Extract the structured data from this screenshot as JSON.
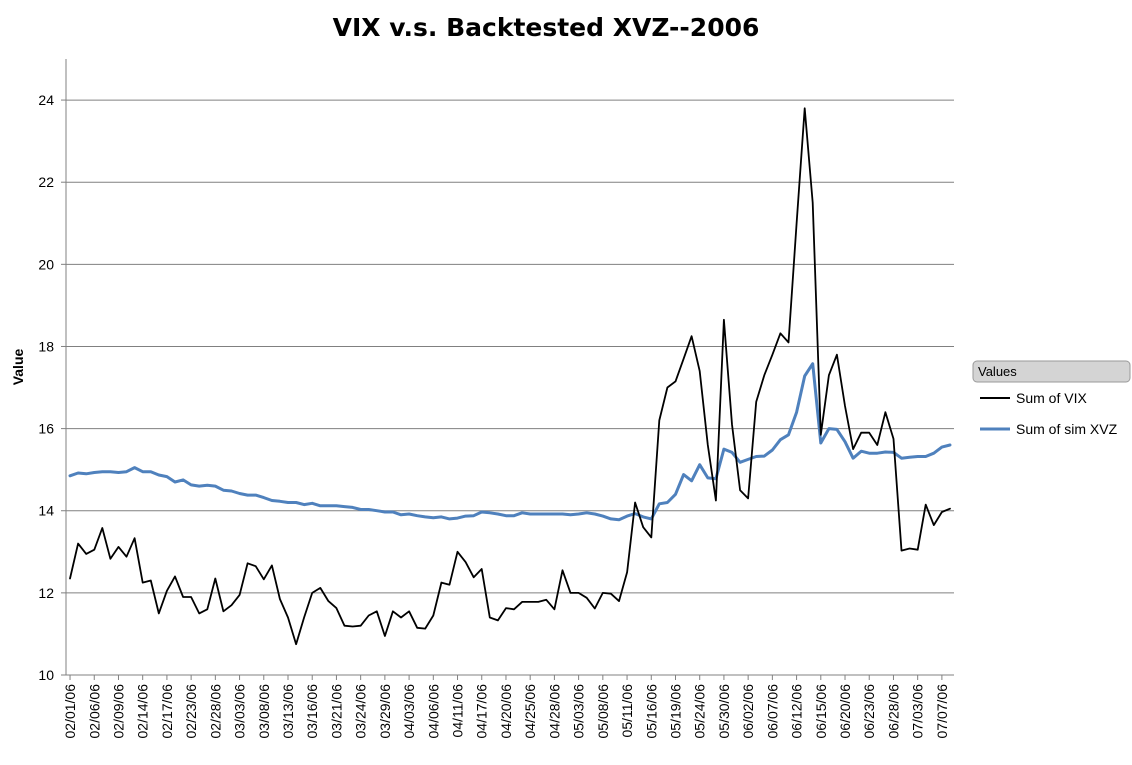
{
  "chart_data": {
    "type": "line",
    "title": "VIX v.s. Backtested XVZ--2006",
    "ylabel": "Value",
    "xlabel": "",
    "ylim": [
      10,
      25
    ],
    "yticks": [
      10,
      12,
      14,
      16,
      18,
      20,
      22,
      24
    ],
    "grid": true,
    "legend": {
      "header": "Values",
      "placement": "right"
    },
    "x": [
      "02/01/06",
      "02/02/06",
      "02/03/06",
      "02/06/06",
      "02/07/06",
      "02/08/06",
      "02/09/06",
      "02/10/06",
      "02/13/06",
      "02/14/06",
      "02/15/06",
      "02/16/06",
      "02/17/06",
      "02/21/06",
      "02/22/06",
      "02/23/06",
      "02/24/06",
      "02/27/06",
      "02/28/06",
      "03/01/06",
      "03/02/06",
      "03/03/06",
      "03/06/06",
      "03/07/06",
      "03/08/06",
      "03/09/06",
      "03/10/06",
      "03/13/06",
      "03/14/06",
      "03/15/06",
      "03/16/06",
      "03/17/06",
      "03/20/06",
      "03/21/06",
      "03/22/06",
      "03/23/06",
      "03/24/06",
      "03/27/06",
      "03/28/06",
      "03/29/06",
      "03/30/06",
      "03/31/06",
      "04/03/06",
      "04/04/06",
      "04/05/06",
      "04/06/06",
      "04/07/06",
      "04/10/06",
      "04/11/06",
      "04/12/06",
      "04/13/06",
      "04/17/06",
      "04/18/06",
      "04/19/06",
      "04/20/06",
      "04/21/06",
      "04/24/06",
      "04/25/06",
      "04/26/06",
      "04/27/06",
      "04/28/06",
      "05/01/06",
      "05/02/06",
      "05/03/06",
      "05/04/06",
      "05/05/06",
      "05/08/06",
      "05/09/06",
      "05/10/06",
      "05/11/06",
      "05/12/06",
      "05/15/06",
      "05/16/06",
      "05/17/06",
      "05/18/06",
      "05/19/06",
      "05/22/06",
      "05/23/06",
      "05/24/06",
      "05/25/06",
      "05/26/06",
      "05/30/06",
      "05/31/06",
      "06/01/06",
      "06/02/06",
      "06/05/06",
      "06/06/06",
      "06/07/06",
      "06/08/06",
      "06/09/06",
      "06/12/06",
      "06/13/06",
      "06/14/06",
      "06/15/06",
      "06/16/06",
      "06/19/06",
      "06/20/06",
      "06/21/06",
      "06/22/06",
      "06/23/06",
      "06/26/06",
      "06/27/06",
      "06/28/06",
      "06/29/06",
      "06/30/06",
      "07/03/06",
      "07/05/06",
      "07/06/06",
      "07/07/06",
      "07/10/06"
    ],
    "xtick_labels": [
      "02/01/06",
      "02/06/06",
      "02/09/06",
      "02/14/06",
      "02/17/06",
      "02/23/06",
      "02/28/06",
      "03/03/06",
      "03/08/06",
      "03/13/06",
      "03/16/06",
      "03/21/06",
      "03/24/06",
      "03/29/06",
      "04/03/06",
      "04/06/06",
      "04/11/06",
      "04/17/06",
      "04/20/06",
      "04/25/06",
      "04/28/06",
      "05/03/06",
      "05/08/06",
      "05/11/06",
      "05/16/06",
      "05/19/06",
      "05/24/06",
      "05/30/06",
      "06/02/06",
      "06/07/06",
      "06/12/06",
      "06/15/06",
      "06/20/06",
      "06/23/06",
      "06/28/06",
      "07/03/06",
      "07/07/06"
    ],
    "series": [
      {
        "name": "Sum of VIX",
        "color": "#000000",
        "values": [
          12.35,
          13.2,
          12.95,
          13.05,
          13.58,
          12.83,
          13.12,
          12.88,
          13.33,
          12.25,
          12.3,
          11.5,
          12.05,
          12.4,
          11.9,
          11.9,
          11.5,
          11.6,
          12.35,
          11.55,
          11.7,
          11.95,
          12.72,
          12.65,
          12.33,
          12.67,
          11.85,
          11.4,
          10.75,
          11.4,
          12.0,
          12.12,
          11.8,
          11.63,
          11.2,
          11.18,
          11.2,
          11.45,
          11.55,
          10.95,
          11.55,
          11.4,
          11.55,
          11.15,
          11.13,
          11.45,
          12.25,
          12.2,
          13.0,
          12.75,
          12.38,
          12.58,
          11.4,
          11.33,
          11.63,
          11.6,
          11.78,
          11.78,
          11.78,
          11.83,
          11.6,
          12.55,
          12.0,
          12.0,
          11.88,
          11.62,
          12.0,
          11.98,
          11.8,
          12.5,
          14.2,
          13.6,
          13.35,
          16.2,
          17.0,
          17.15,
          17.7,
          18.25,
          17.4,
          15.6,
          14.25,
          18.65,
          16.1,
          14.5,
          14.3,
          16.65,
          17.3,
          17.8,
          18.32,
          18.1,
          21.0,
          23.8,
          21.5,
          15.85,
          17.3,
          17.8,
          16.55,
          15.5,
          15.9,
          15.9,
          15.6,
          16.4,
          15.75,
          13.03,
          13.08,
          13.05,
          14.15,
          13.65,
          13.97,
          14.05
        ]
      },
      {
        "name": "Sum of sim XVZ",
        "color": "#4F81BD",
        "values": [
          14.85,
          14.92,
          14.9,
          14.93,
          14.95,
          14.95,
          14.93,
          14.95,
          15.05,
          14.95,
          14.95,
          14.87,
          14.83,
          14.7,
          14.75,
          14.63,
          14.6,
          14.62,
          14.6,
          14.5,
          14.48,
          14.42,
          14.38,
          14.38,
          14.32,
          14.25,
          14.23,
          14.2,
          14.2,
          14.15,
          14.18,
          14.12,
          14.12,
          14.12,
          14.1,
          14.08,
          14.03,
          14.03,
          14.0,
          13.97,
          13.97,
          13.9,
          13.92,
          13.88,
          13.85,
          13.83,
          13.85,
          13.8,
          13.82,
          13.87,
          13.88,
          13.97,
          13.95,
          13.92,
          13.88,
          13.88,
          13.95,
          13.92,
          13.92,
          13.92,
          13.92,
          13.92,
          13.9,
          13.92,
          13.95,
          13.92,
          13.87,
          13.8,
          13.78,
          13.87,
          13.93,
          13.85,
          13.8,
          14.17,
          14.2,
          14.4,
          14.88,
          14.73,
          15.12,
          14.8,
          14.78,
          15.5,
          15.42,
          15.18,
          15.25,
          15.32,
          15.33,
          15.48,
          15.73,
          15.85,
          16.4,
          17.28,
          17.58,
          15.65,
          16.0,
          15.98,
          15.68,
          15.28,
          15.45,
          15.4,
          15.4,
          15.43,
          15.42,
          15.28,
          15.3,
          15.32,
          15.32,
          15.4,
          15.55,
          15.6
        ]
      }
    ]
  }
}
